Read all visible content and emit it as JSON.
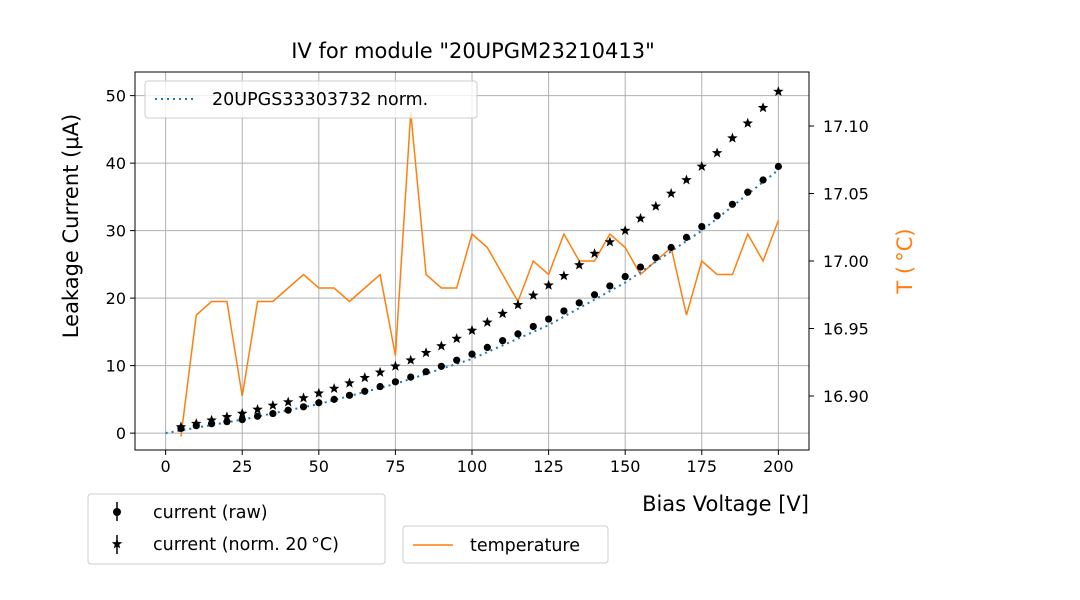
{
  "chart_data": {
    "type": "line",
    "title": "IV for module \"20UPGM23210413\"",
    "xlabel": "Bias Voltage [V]",
    "ylabel": "Leakage Current (μA)",
    "y2label": "T ( °C)",
    "xlim": [
      -10,
      210
    ],
    "ylim": [
      -2.5,
      53.5
    ],
    "y2lim": [
      16.86,
      17.14
    ],
    "xticks": [
      0,
      25,
      50,
      75,
      100,
      125,
      150,
      175,
      200
    ],
    "yticks": [
      0,
      10,
      20,
      30,
      40,
      50
    ],
    "y2ticks": [
      16.9,
      16.95,
      17.0,
      17.05,
      17.1
    ],
    "y2ticklabels": [
      "16.90",
      "16.95",
      "17.00",
      "17.05",
      "17.10"
    ],
    "grid": true,
    "x": [
      5,
      10,
      15,
      20,
      25,
      30,
      35,
      40,
      45,
      50,
      55,
      60,
      65,
      70,
      75,
      80,
      85,
      90,
      95,
      100,
      105,
      110,
      115,
      120,
      125,
      130,
      135,
      140,
      145,
      150,
      155,
      160,
      165,
      170,
      175,
      180,
      185,
      190,
      195,
      200
    ],
    "series": [
      {
        "name": "current (raw)",
        "axis": "left",
        "marker": "circle",
        "values": [
          0.7,
          1.1,
          1.4,
          1.7,
          2.0,
          2.5,
          2.9,
          3.4,
          3.9,
          4.5,
          5.0,
          5.6,
          6.2,
          6.9,
          7.6,
          8.3,
          9.1,
          9.9,
          10.8,
          11.7,
          12.7,
          13.7,
          14.7,
          15.8,
          16.9,
          18.1,
          19.3,
          20.5,
          21.8,
          23.2,
          24.6,
          26.0,
          27.5,
          29.0,
          30.6,
          32.2,
          33.9,
          35.7,
          37.5,
          39.5
        ]
      },
      {
        "name": "current (norm. 20 °C)",
        "axis": "left",
        "marker": "star",
        "values": [
          0.9,
          1.4,
          1.9,
          2.4,
          2.9,
          3.5,
          4.1,
          4.6,
          5.2,
          5.9,
          6.6,
          7.4,
          8.2,
          9.0,
          9.9,
          10.8,
          11.9,
          12.9,
          14.0,
          15.2,
          16.4,
          17.7,
          19.0,
          20.4,
          21.9,
          23.3,
          24.9,
          26.6,
          28.3,
          30.0,
          31.8,
          33.6,
          35.5,
          37.5,
          39.5,
          41.5,
          43.7,
          45.9,
          48.2,
          50.6
        ]
      },
      {
        "name": "temperature",
        "axis": "right",
        "marker": "none",
        "color": "#ff7f0e",
        "values": [
          16.87,
          16.96,
          16.97,
          16.97,
          16.9,
          16.97,
          16.97,
          16.98,
          16.99,
          16.98,
          16.98,
          16.97,
          16.98,
          16.99,
          16.93,
          17.11,
          16.99,
          16.98,
          16.98,
          17.02,
          17.01,
          16.99,
          16.97,
          17.0,
          16.99,
          17.02,
          17.0,
          17.0,
          17.02,
          17.01,
          16.99,
          17.0,
          17.01,
          16.96,
          17.0,
          16.99,
          16.99,
          17.02,
          17.0,
          17.03
        ]
      },
      {
        "name": "20UPGS33303732 norm.",
        "axis": "left",
        "style": "dotted",
        "color": "#1f77b4",
        "x": [
          0,
          25,
          50,
          75,
          100,
          125,
          150,
          175,
          200
        ],
        "values": [
          0.0,
          2.0,
          4.3,
          7.3,
          11.0,
          16.0,
          22.3,
          30.0,
          39.0
        ]
      }
    ],
    "legends": {
      "inner": [
        "20UPGS33303732 norm."
      ],
      "outer_left": [
        "current (raw)",
        "current (norm. 20 °C)"
      ],
      "outer_right": [
        "temperature"
      ]
    }
  }
}
